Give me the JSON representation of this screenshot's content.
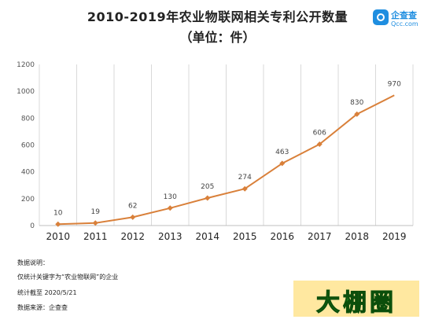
{
  "chart_data": {
    "type": "line",
    "title": "2010-2019年农业物联网相关专利公开数量",
    "subtitle": "（单位：件）",
    "x": [
      "2010",
      "2011",
      "2012",
      "2013",
      "2014",
      "2015",
      "2016",
      "2017",
      "2018",
      "2019"
    ],
    "values": [
      10,
      19,
      62,
      130,
      205,
      274,
      463,
      606,
      830,
      970
    ],
    "ylim": [
      0,
      1200
    ],
    "yticks": [
      0,
      200,
      400,
      600,
      800,
      1000,
      1200
    ],
    "grid": "vertical",
    "legend": "none",
    "xlabel": "",
    "ylabel": "",
    "color": "#d9803a"
  },
  "logo": {
    "name": "企查查",
    "domain": "Qcc.com"
  },
  "notes": {
    "heading": "数据说明：",
    "line1": "仅统计关键字为“农业物联网”的企业",
    "line2": "统计截至 2020/5/21",
    "line3": "数据来源：企查查"
  },
  "watermark": "大棚圈"
}
